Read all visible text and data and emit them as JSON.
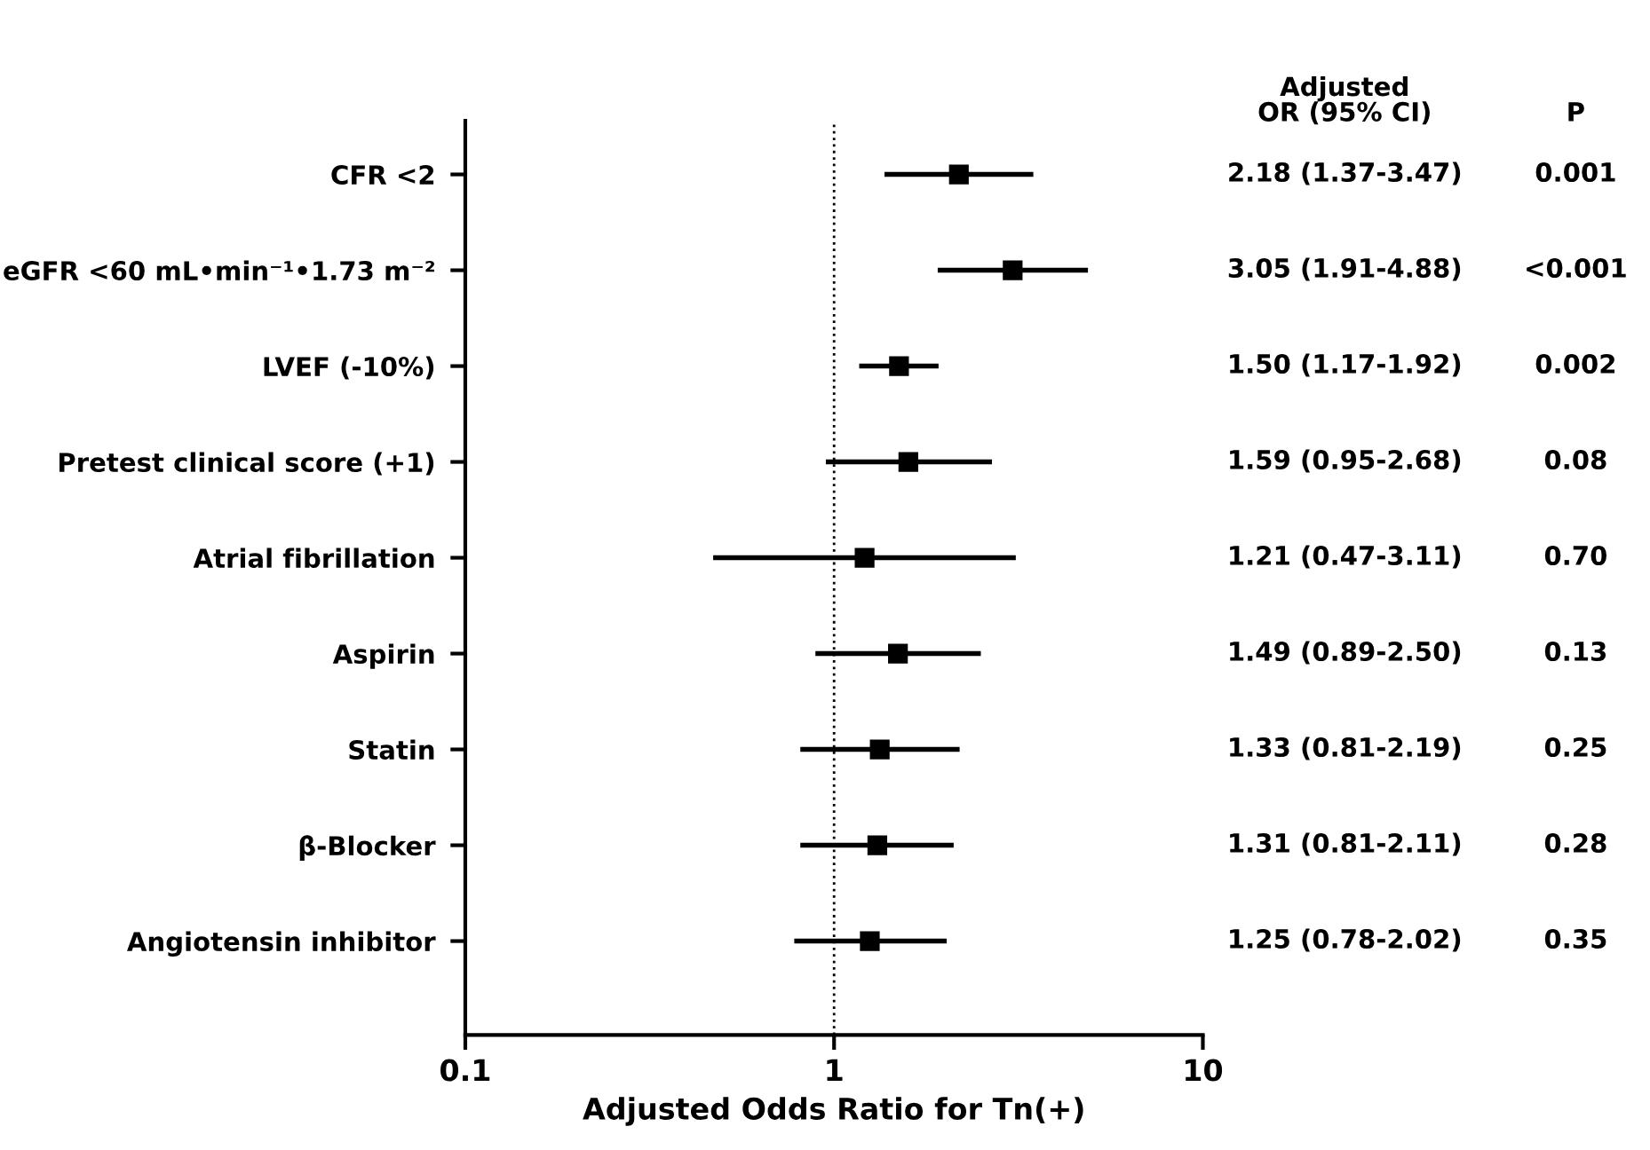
{
  "chart_data": {
    "type": "scatter",
    "orientation": "horizontal",
    "xlabel": "Adjusted Odds Ratio for Tn(+)",
    "categories": [
      "CFR <2",
      "eGFR <60 mL•min⁻¹•1.73 m⁻²",
      "LVEF (-10%)",
      "Pretest clinical score (+1)",
      "Atrial fibrillation",
      "Aspirin",
      "Statin",
      "β-Blocker",
      "Angiotensin inhibitor"
    ],
    "color": "#000000",
    "values": [
      2.18,
      3.05,
      1.5,
      1.59,
      1.21,
      1.49,
      1.33,
      1.31,
      1.25
    ],
    "errors": [
      [
        1.37,
        3.47
      ],
      [
        1.91,
        4.88
      ],
      [
        1.17,
        1.92
      ],
      [
        0.95,
        2.68
      ],
      [
        0.47,
        3.11
      ],
      [
        0.89,
        2.5
      ],
      [
        0.81,
        2.19
      ],
      [
        0.81,
        2.11
      ],
      [
        0.78,
        2.02
      ]
    ],
    "value_labels": [
      "2.18 (1.37-3.47)",
      "3.05 (1.91-4.88)",
      "1.50 (1.17-1.92)",
      "1.59 (0.95-2.68)",
      "1.21 (0.47-3.11)",
      "1.49 (0.89-2.50)",
      "1.33 (0.81-2.19)",
      "1.31 (0.81-2.11)",
      "1.25 (0.78-2.02)"
    ],
    "annotations": [
      "Adjusted\nOR (95% CI)",
      "P",
      "0.001",
      "<0.001",
      "0.002",
      "0.08",
      "0.70",
      "0.13",
      "0.25",
      "0.28",
      "0.35"
    ],
    "log": "x",
    "xlim": [
      0.1,
      10
    ],
    "xticks": [
      0.1,
      1,
      10
    ],
    "ref_lines": [
      {
        "axis": "x",
        "value": 1,
        "line_style": "dotted",
        "color": "#000000"
      }
    ],
    "marker": "square",
    "grid": false,
    "legend": false
  }
}
